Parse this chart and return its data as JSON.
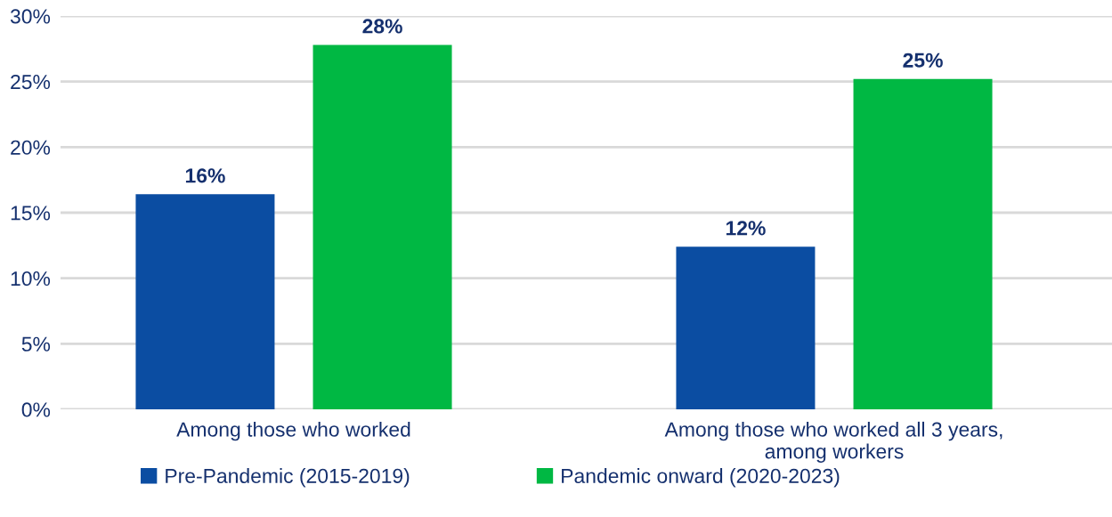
{
  "chart_data": {
    "type": "bar",
    "categories": [
      "Among those who worked",
      "Among those who worked all 3 years,\namong workers"
    ],
    "series": [
      {
        "name": "Pre-Pandemic (2015-2019)",
        "color": "#0b4da2",
        "values": [
          16.4,
          12.4
        ],
        "value_labels": [
          "16%",
          "12%"
        ]
      },
      {
        "name": "Pandemic onward (2020-2023)",
        "color": "#00b843",
        "values": [
          27.8,
          25.2
        ],
        "value_labels": [
          "28%",
          "25%"
        ]
      }
    ],
    "ylim": [
      0,
      30
    ],
    "yticks": [
      {
        "value": 0,
        "label": "0%"
      },
      {
        "value": 5,
        "label": "5%"
      },
      {
        "value": 10,
        "label": "10%"
      },
      {
        "value": 15,
        "label": "15%"
      },
      {
        "value": 20,
        "label": "20%"
      },
      {
        "value": 25,
        "label": "25%"
      },
      {
        "value": 30,
        "label": "30%"
      }
    ],
    "grid": "y",
    "legend": "bottom"
  }
}
